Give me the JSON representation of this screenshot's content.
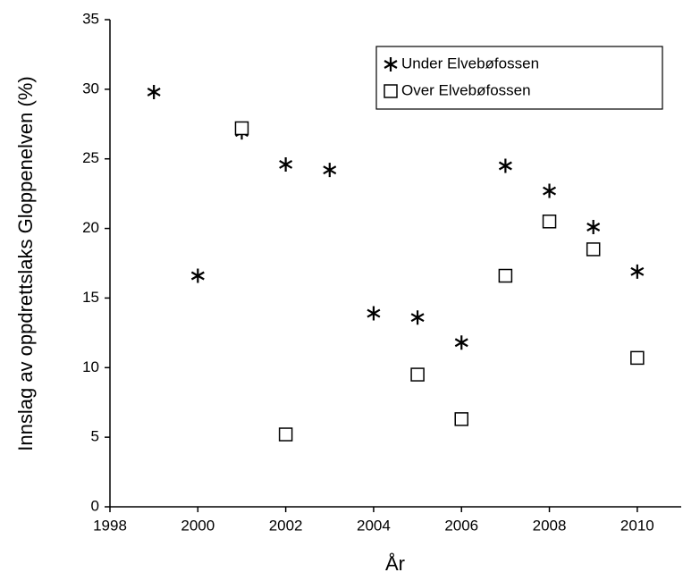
{
  "chart_data": {
    "type": "scatter",
    "xlabel": "År",
    "ylabel": "Innslag av oppdrettslaks Gloppenelven (%)",
    "xlim": [
      1998,
      2011
    ],
    "xticks": [
      1998,
      2000,
      2002,
      2004,
      2006,
      2008,
      2010
    ],
    "ylim": [
      0,
      35
    ],
    "yticks": [
      0,
      5,
      10,
      15,
      20,
      25,
      30,
      35
    ],
    "grid": false,
    "legend": "upper right",
    "series": [
      {
        "name": "Under Elvebøfossen",
        "marker": "asterisk",
        "color": "#000000",
        "x": [
          1999,
          2000,
          2001,
          2002,
          2003,
          2004,
          2005,
          2006,
          2007,
          2008,
          2009,
          2010
        ],
        "values": [
          29.8,
          16.6,
          26.9,
          24.6,
          24.2,
          13.9,
          13.6,
          11.8,
          24.5,
          22.7,
          20.1,
          16.9
        ]
      },
      {
        "name": "Over Elvebøfossen",
        "marker": "square",
        "color": "#000000",
        "x": [
          2001,
          2002,
          2005,
          2006,
          2007,
          2008,
          2009,
          2010
        ],
        "values": [
          27.2,
          5.2,
          9.5,
          6.3,
          16.6,
          20.5,
          18.5,
          10.7
        ]
      }
    ]
  }
}
